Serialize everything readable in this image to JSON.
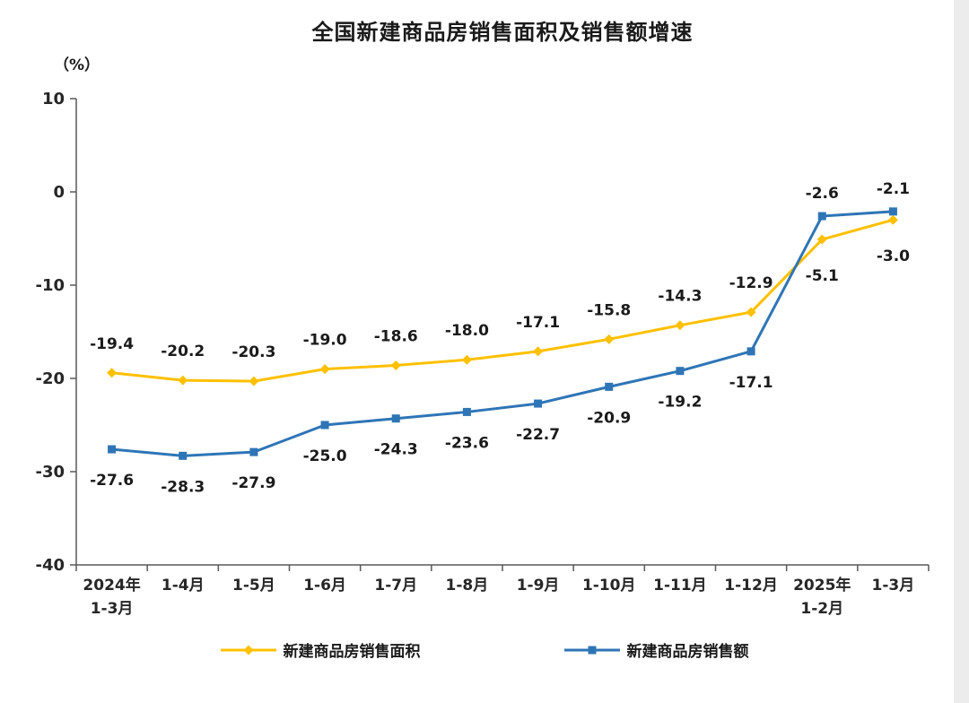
{
  "chart_data": {
    "type": "line",
    "title": "全国新建商品房销售面积及销售额增速",
    "unit_label": "（%）",
    "ylim": [
      -40,
      10
    ],
    "y_ticks": [
      10,
      0,
      -10,
      -20,
      -30,
      -40
    ],
    "grid": false,
    "legend_position": "bottom",
    "categories": [
      "2024年\n1-3月",
      "1-4月",
      "1-5月",
      "1-6月",
      "1-7月",
      "1-8月",
      "1-9月",
      "1-10月",
      "1-11月",
      "1-12月",
      "2025年\n1-2月",
      "1-3月"
    ],
    "series": [
      {
        "name": "新建商品房销售面积",
        "color": "#FFC000",
        "marker": "diamond",
        "values": [
          -19.4,
          -20.2,
          -20.3,
          -19.0,
          -18.6,
          -18.0,
          -17.1,
          -15.8,
          -14.3,
          -12.9,
          -5.1,
          -3.0
        ],
        "label_placement": [
          "above",
          "above",
          "above",
          "above",
          "above",
          "above",
          "above",
          "above",
          "above",
          "above",
          "below",
          "below"
        ]
      },
      {
        "name": "新建商品房销售额",
        "color": "#2E75B6",
        "marker": "square",
        "values": [
          -27.6,
          -28.3,
          -27.9,
          -25.0,
          -24.3,
          -23.6,
          -22.7,
          -20.9,
          -19.2,
          -17.1,
          -2.6,
          -2.1
        ],
        "label_placement": [
          "below",
          "below",
          "below",
          "below",
          "below",
          "below",
          "below",
          "below",
          "below",
          "below",
          "above",
          "above"
        ]
      }
    ],
    "axis_color": "#595959"
  }
}
